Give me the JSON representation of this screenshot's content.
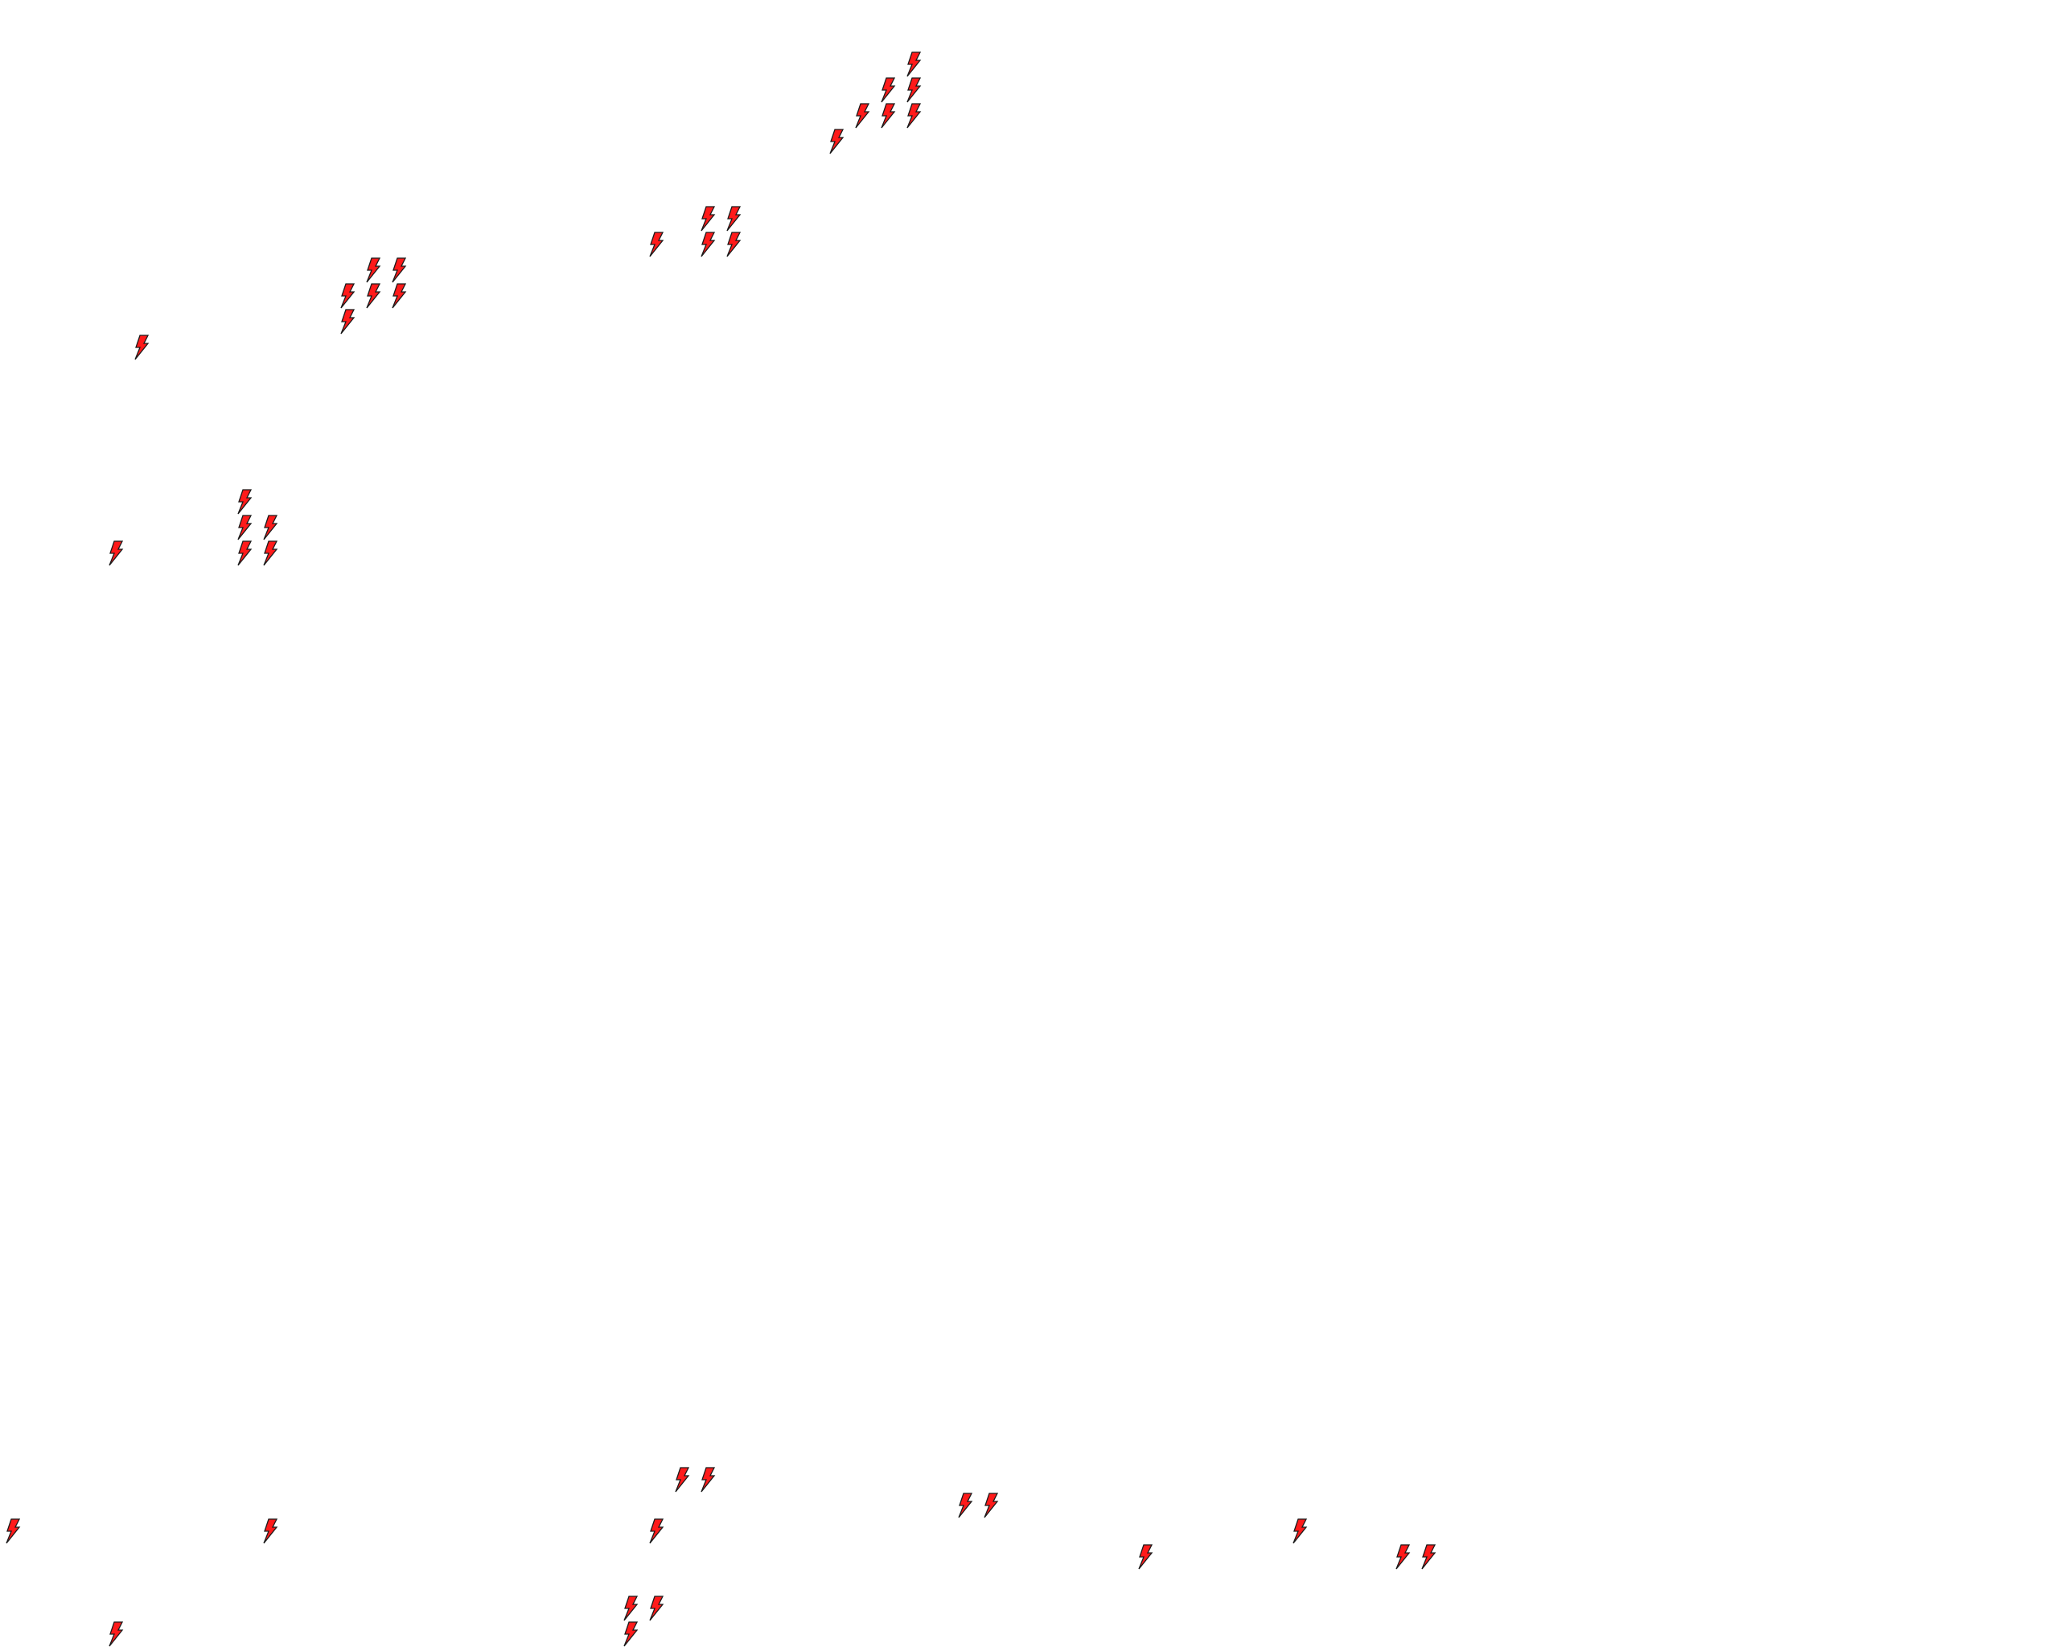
{
  "icon": {
    "name": "lightning-bolt-icon",
    "fill": "#ff1a1a",
    "stroke": "#1a1a1a"
  },
  "background": "#ffffff"
}
